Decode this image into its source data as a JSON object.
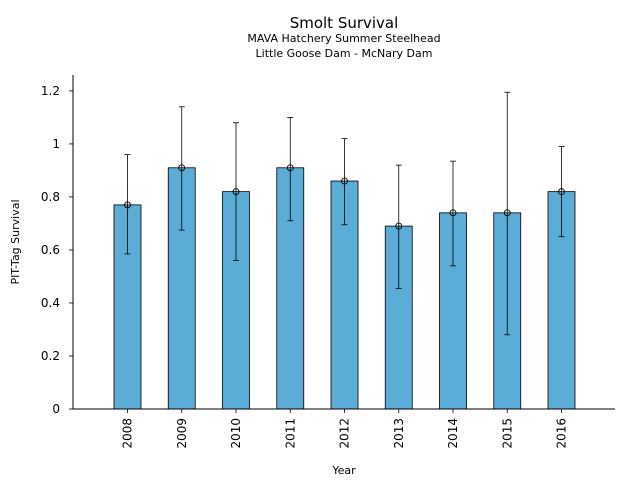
{
  "chart_data": {
    "type": "bar",
    "title": "Smolt Survival",
    "subtitle_lines": [
      "MAVA Hatchery Summer Steelhead",
      "Little Goose Dam - McNary Dam"
    ],
    "xlabel": "Year",
    "ylabel": "PIT-Tag Survival",
    "categories": [
      "2008",
      "2009",
      "2010",
      "2011",
      "2012",
      "2013",
      "2014",
      "2015",
      "2016"
    ],
    "values": [
      0.77,
      0.91,
      0.82,
      0.91,
      0.86,
      0.69,
      0.74,
      0.74,
      0.82
    ],
    "error_low": [
      0.585,
      0.675,
      0.56,
      0.71,
      0.695,
      0.455,
      0.54,
      0.28,
      0.65
    ],
    "error_high": [
      0.96,
      1.14,
      1.08,
      1.1,
      1.02,
      0.92,
      0.935,
      1.195,
      0.99
    ],
    "ylim": [
      0,
      1.26
    ],
    "yticks": [
      0,
      0.2,
      0.4,
      0.6,
      0.8,
      1,
      1.2
    ],
    "ytick_labels": [
      "0",
      "0.2",
      "0.4",
      "0.6",
      "0.8",
      "1",
      "1.2"
    ],
    "grid": false,
    "bar_color": "#5bacd6"
  }
}
